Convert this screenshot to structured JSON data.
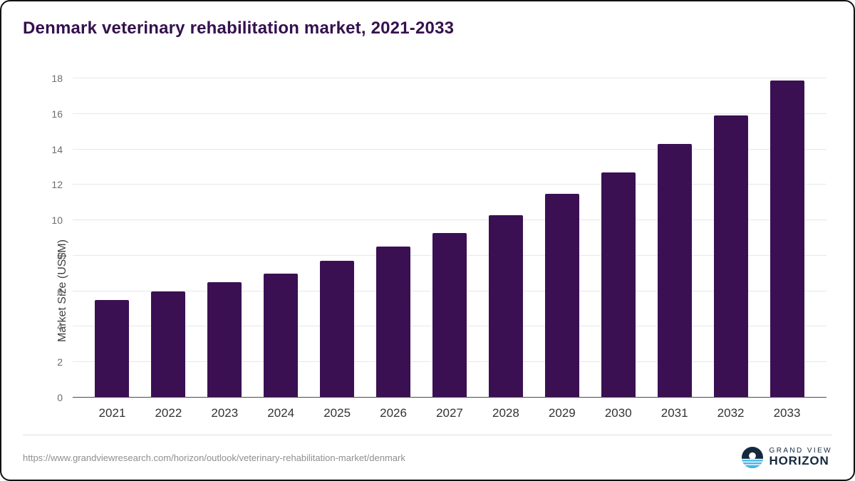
{
  "title": "Denmark veterinary rehabilitation market, 2021-2033",
  "colors": {
    "bar": "#3b1053",
    "title": "#35104e",
    "grid": "#e7e7e7",
    "baseline": "#4a4a4a",
    "logo_navy": "#14293d",
    "logo_blue": "#45b6e8"
  },
  "chart_data": {
    "type": "bar",
    "title": "Denmark veterinary rehabilitation market, 2021-2033",
    "categories": [
      "2021",
      "2022",
      "2023",
      "2024",
      "2025",
      "2026",
      "2027",
      "2028",
      "2029",
      "2030",
      "2031",
      "2032",
      "2033"
    ],
    "values": [
      5.5,
      6.0,
      6.5,
      7.0,
      7.7,
      8.5,
      9.3,
      10.3,
      11.5,
      12.7,
      14.3,
      15.9,
      17.9
    ],
    "xlabel": "",
    "ylabel": "Market Size (US$M)",
    "ylim": [
      0,
      18
    ],
    "yticks": [
      0,
      2,
      4,
      6,
      8,
      10,
      12,
      14,
      16,
      18
    ],
    "grid": true,
    "legend_position": "none"
  },
  "footer": {
    "source_url": "https://www.grandviewresearch.com/horizon/outlook/veterinary-rehabilitation-market/denmark",
    "logo": {
      "line1": "GRAND VIEW",
      "line2": "HORIZON"
    }
  }
}
